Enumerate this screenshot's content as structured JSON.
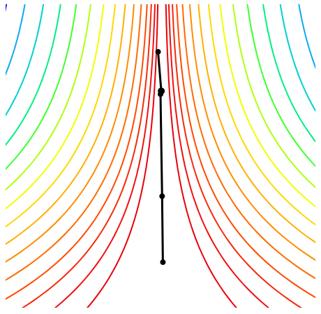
{
  "chart_data": {
    "type": "contour",
    "xlim": [
      -2,
      2
    ],
    "ylim": [
      -1,
      3
    ],
    "level_colors": [
      "#e8000b",
      "#f01010",
      "#f52a0a",
      "#ff4a00",
      "#ff6a00",
      "#ff8c00",
      "#ffb000",
      "#ffd800",
      "#f0ff00",
      "#b0ff10",
      "#40ff30",
      "#00f080",
      "#00d0d0",
      "#10a8f0",
      "#3010e0"
    ],
    "path": {
      "x": [
        -0.03,
        0.01,
        0.0,
        0.02,
        0.03
      ],
      "y": [
        2.34,
        1.84,
        1.8,
        0.5,
        -0.34
      ],
      "color": "#000000"
    }
  }
}
